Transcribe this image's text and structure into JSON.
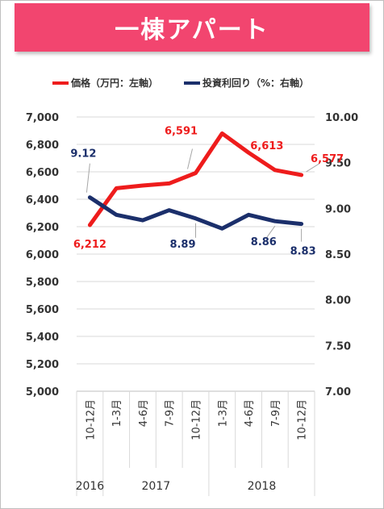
{
  "title": "一棟アパート",
  "chart_data": {
    "type": "line",
    "categories": [
      "10-12月",
      "1-3月",
      "4-6月",
      "7-9月",
      "10-12月",
      "1-3月",
      "4-6月",
      "7-9月",
      "10-12月"
    ],
    "years": [
      {
        "label": "2016",
        "span": [
          0,
          0
        ]
      },
      {
        "label": "2017",
        "span": [
          1,
          4
        ]
      },
      {
        "label": "2018",
        "span": [
          5,
          8
        ]
      }
    ],
    "left_axis": {
      "ticks": [
        "5,000",
        "5,200",
        "5,400",
        "5,600",
        "5,800",
        "6,000",
        "6,200",
        "6,400",
        "6,600",
        "6,800",
        "7,000"
      ],
      "ylim": [
        5000,
        7000
      ]
    },
    "right_axis": {
      "ticks": [
        "7.00",
        "7.50",
        "8.00",
        "8.50",
        "9.00",
        "9.50",
        "10.00"
      ],
      "ylim": [
        7.0,
        10.0
      ]
    },
    "series": [
      {
        "name": "価格（万円：左軸）",
        "axis": "left",
        "color": "#ee1c1c",
        "values": [
          6212,
          6480,
          6500,
          6515,
          6591,
          6880,
          6740,
          6613,
          6577
        ],
        "labels": [
          {
            "index": 0,
            "text": "6,212"
          },
          {
            "index": 4,
            "text": "6,591"
          },
          {
            "index": 7,
            "text": "6,613"
          },
          {
            "index": 8,
            "text": "6,577"
          }
        ]
      },
      {
        "name": "投資利回り（%：右軸）",
        "axis": "right",
        "color": "#1b2f6b",
        "values": [
          9.12,
          8.93,
          8.87,
          8.98,
          8.89,
          8.78,
          8.93,
          8.86,
          8.83
        ],
        "labels": [
          {
            "index": 0,
            "text": "9.12"
          },
          {
            "index": 4,
            "text": "8.89"
          },
          {
            "index": 7,
            "text": "8.86"
          },
          {
            "index": 8,
            "text": "8.83"
          }
        ]
      }
    ]
  }
}
